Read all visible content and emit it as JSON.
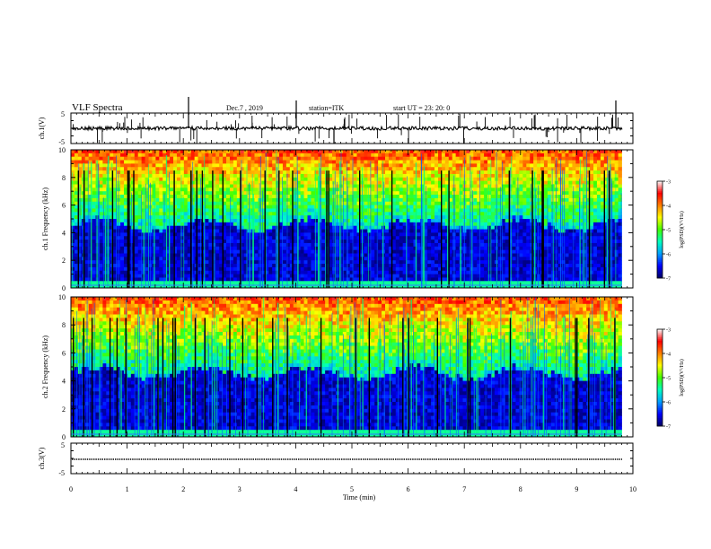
{
  "header": {
    "title": "VLF Spectra",
    "date": "Dec.7 , 2019",
    "station": "station=ITK",
    "start": "start UT = 23: 20: 0"
  },
  "chart_data": [
    {
      "type": "line",
      "panel": "ch1-waveform",
      "ylabel": "ch.1(V)",
      "ylim": [
        -5,
        5
      ],
      "yticks": [
        "5",
        "-5"
      ],
      "xlim": [
        0,
        10
      ],
      "series": [
        {
          "values_description_baseline": 0
        }
      ]
    },
    {
      "type": "heatmap",
      "panel": "ch1-spectrogram",
      "ylabel": "ch.1 Frequency (kHz)",
      "ylim": [
        0,
        10
      ],
      "yticks": [
        "0",
        "2",
        "4",
        "6",
        "8",
        "10"
      ],
      "xlim": [
        0,
        9.8
      ],
      "colorbar": {
        "label": "log(PSD)(V²/Hz)",
        "ticks": [
          "-3",
          "-4",
          "-5",
          "-6",
          "-7"
        ],
        "range": [
          -7,
          -3
        ]
      }
    },
    {
      "type": "heatmap",
      "panel": "ch2-spectrogram",
      "ylabel": "ch.2 Frequency (kHz)",
      "ylim": [
        0,
        10
      ],
      "yticks": [
        "0",
        "2",
        "4",
        "6",
        "8",
        "10"
      ],
      "xlim": [
        0,
        9.8
      ],
      "colorbar": {
        "label": "log(PSD)(V²/Hz)",
        "ticks": [
          "-3",
          "-4",
          "-5",
          "-6",
          "-7"
        ],
        "range": [
          -7,
          -3
        ]
      }
    },
    {
      "type": "line",
      "panel": "ch3-waveform",
      "ylabel": "ch.3(V)",
      "ylim": [
        -5,
        5
      ],
      "yticks": [
        "5",
        "-5"
      ],
      "xlim": [
        0,
        10
      ],
      "series": [
        {
          "values": [
            0,
            0
          ]
        }
      ]
    }
  ],
  "xaxis": {
    "label": "Time (min)",
    "ticks": [
      "0",
      "1",
      "2",
      "3",
      "4",
      "5",
      "6",
      "7",
      "8",
      "9",
      "10"
    ],
    "range": [
      0,
      10
    ]
  },
  "colors": {
    "scale": [
      "#000060",
      "#0000ff",
      "#00a0ff",
      "#00ffc0",
      "#40ff00",
      "#ffff00",
      "#ff8000",
      "#ff0000",
      "#ffffff"
    ]
  }
}
